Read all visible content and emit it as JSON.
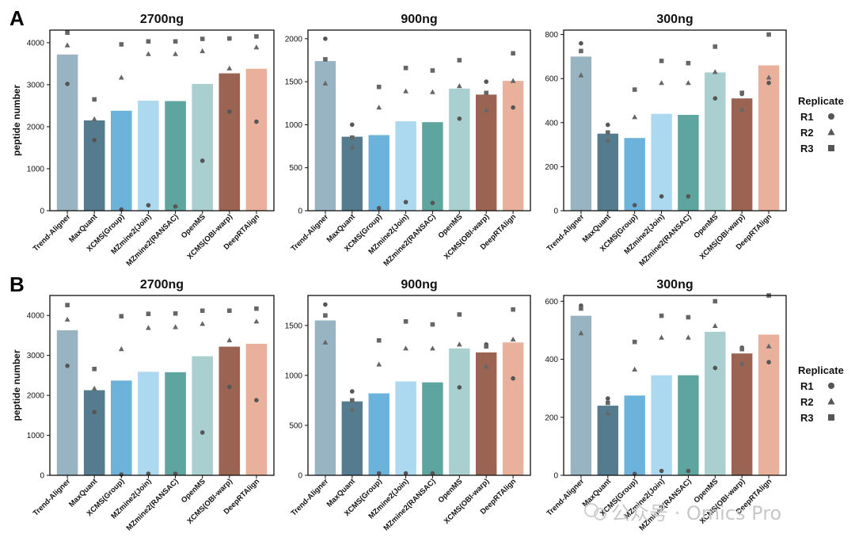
{
  "colors": [
    "#98b4c2",
    "#557c8e",
    "#6bb3db",
    "#acd9ef",
    "#5ea49f",
    "#a9cfd0",
    "#9b6452",
    "#e9b09c"
  ],
  "marker_color": "#555555",
  "categories": [
    "Trend-Aligner",
    "MaxQuant",
    "XCMS(Group)",
    "MZmine2(Join)",
    "MZmine2(RANSAC)",
    "OpenMS",
    "XCMS(OBI-warp)",
    "DeepRTAlign"
  ],
  "ylabel": "peptide number",
  "legend": {
    "title": "Replicate",
    "items": [
      {
        "label": "R1",
        "marker": "circle"
      },
      {
        "label": "R2",
        "marker": "triangle"
      },
      {
        "label": "R3",
        "marker": "square"
      }
    ]
  },
  "panels": [
    {
      "letter": "A"
    },
    {
      "letter": "B"
    }
  ],
  "watermark": "公众号 · Omics Pro",
  "chart_data": [
    {
      "panel": "A",
      "type": "bar",
      "title": "2700ng",
      "ylim": [
        0,
        4300
      ],
      "yticks": [
        0,
        1000,
        2000,
        3000,
        4000
      ],
      "values": [
        3720,
        2150,
        2380,
        2620,
        2610,
        3020,
        3270,
        3380
      ],
      "replicates": {
        "R1": [
          3020,
          1680,
          30,
          130,
          100,
          1190,
          2360,
          2120
        ],
        "R2": [
          3940,
          2180,
          3170,
          3730,
          3730,
          3800,
          3390,
          3890
        ],
        "R3": [
          4240,
          2650,
          3960,
          4030,
          4030,
          4090,
          4100,
          4150
        ]
      }
    },
    {
      "panel": "A",
      "type": "bar",
      "title": "900ng",
      "ylim": [
        0,
        2100
      ],
      "yticks": [
        0,
        500,
        1000,
        1500,
        2000
      ],
      "values": [
        1740,
        860,
        880,
        1040,
        1030,
        1420,
        1350,
        1510
      ],
      "replicates": {
        "R1": [
          2000,
          1000,
          30,
          100,
          90,
          1070,
          1500,
          1200
        ],
        "R2": [
          1480,
          740,
          1200,
          1390,
          1380,
          1450,
          1170,
          1510
        ],
        "R3": [
          1760,
          850,
          1440,
          1660,
          1630,
          1750,
          1370,
          1830
        ]
      }
    },
    {
      "panel": "A",
      "type": "bar",
      "title": "300ng",
      "ylim": [
        0,
        820
      ],
      "yticks": [
        0,
        200,
        400,
        600,
        800
      ],
      "values": [
        700,
        350,
        330,
        440,
        435,
        628,
        510,
        660
      ],
      "replicates": {
        "R1": [
          760,
          390,
          25,
          65,
          65,
          510,
          530,
          580
        ],
        "R2": [
          615,
          320,
          425,
          580,
          580,
          630,
          460,
          605
        ],
        "R3": [
          725,
          355,
          550,
          680,
          670,
          745,
          535,
          800
        ]
      }
    },
    {
      "panel": "B",
      "type": "bar",
      "title": "2700ng",
      "ylim": [
        0,
        4500
      ],
      "yticks": [
        0,
        1000,
        2000,
        3000,
        4000
      ],
      "values": [
        3630,
        2130,
        2370,
        2590,
        2580,
        2980,
        3220,
        3290
      ],
      "replicates": {
        "R1": [
          2740,
          1580,
          20,
          40,
          40,
          1070,
          2210,
          1880
        ],
        "R2": [
          3900,
          2170,
          3160,
          3690,
          3710,
          3790,
          3380,
          3850
        ],
        "R3": [
          4260,
          2660,
          3980,
          4040,
          4050,
          4120,
          4120,
          4170
        ]
      }
    },
    {
      "panel": "B",
      "type": "bar",
      "title": "900ng",
      "ylim": [
        0,
        1800
      ],
      "yticks": [
        0,
        500,
        1000,
        1500
      ],
      "values": [
        1550,
        740,
        820,
        940,
        930,
        1270,
        1230,
        1330
      ],
      "replicates": {
        "R1": [
          1710,
          840,
          20,
          20,
          20,
          880,
          1310,
          970
        ],
        "R2": [
          1330,
          660,
          1110,
          1270,
          1270,
          1310,
          1090,
          1360
        ],
        "R3": [
          1600,
          750,
          1350,
          1540,
          1510,
          1610,
          1290,
          1660
        ]
      }
    },
    {
      "panel": "B",
      "type": "bar",
      "title": "300ng",
      "ylim": [
        0,
        620
      ],
      "yticks": [
        0,
        200,
        400,
        600
      ],
      "values": [
        550,
        240,
        275,
        345,
        345,
        495,
        420,
        485
      ],
      "replicates": {
        "R1": [
          585,
          265,
          5,
          15,
          15,
          370,
          440,
          390
        ],
        "R2": [
          490,
          215,
          365,
          475,
          475,
          515,
          385,
          445
        ],
        "R3": [
          575,
          250,
          460,
          550,
          545,
          600,
          435,
          620
        ]
      }
    }
  ]
}
